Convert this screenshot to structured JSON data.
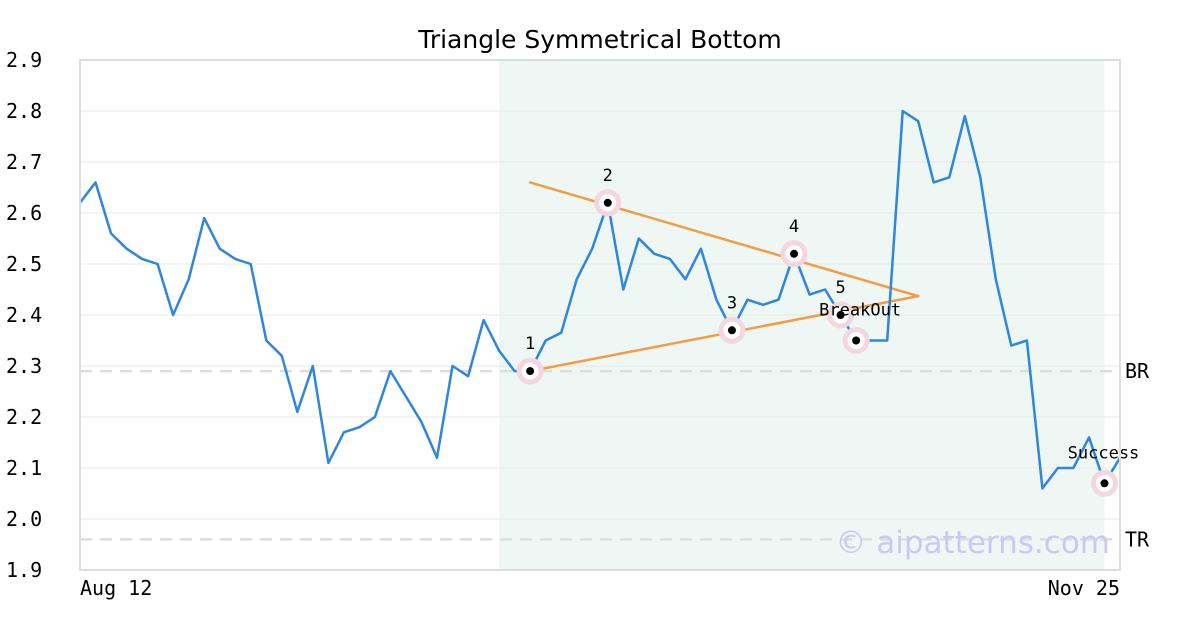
{
  "chart_data": {
    "type": "line",
    "title": "Triangle Symmetrical Bottom",
    "xlabel": "",
    "ylabel": "",
    "ylim": [
      1.9,
      2.9
    ],
    "y_ticks": [
      "2.9",
      "2.8",
      "2.7",
      "2.6",
      "2.5",
      "2.4",
      "2.3",
      "2.2",
      "2.1",
      "2.0",
      "1.9"
    ],
    "x_tick_labels": [
      "Aug 12",
      "Nov 25"
    ],
    "grid": "horizontal",
    "colors": {
      "price": "#2e86de",
      "trendline": "#f39c44",
      "highlight_band": "#eef7f3",
      "marker_ring": "#f2d7df",
      "ref_line": "#dddddd"
    },
    "price": [
      2.62,
      2.66,
      2.56,
      2.53,
      2.51,
      2.5,
      2.4,
      2.47,
      2.59,
      2.53,
      2.51,
      2.5,
      2.35,
      2.32,
      2.21,
      2.3,
      2.11,
      2.17,
      2.18,
      2.2,
      2.29,
      2.24,
      2.19,
      2.12,
      2.3,
      2.28,
      2.39,
      2.33,
      2.29,
      2.29,
      2.35,
      2.365,
      2.47,
      2.53,
      2.62,
      2.45,
      2.55,
      2.52,
      2.51,
      2.47,
      2.53,
      2.43,
      2.37,
      2.43,
      2.42,
      2.43,
      2.52,
      2.44,
      2.45,
      2.4,
      2.35,
      2.35,
      2.35,
      2.8,
      2.78,
      2.66,
      2.67,
      2.79,
      2.67,
      2.47,
      2.34,
      2.35,
      2.06,
      2.1,
      2.1,
      2.16,
      2.07,
      2.12
    ],
    "pattern_band": {
      "start_index": 27,
      "end_index": 66
    },
    "trendlines": [
      {
        "points": [
          [
            29,
            2.66
          ],
          [
            54,
            2.437
          ]
        ]
      },
      {
        "points": [
          [
            29,
            2.29
          ],
          [
            54,
            2.437
          ]
        ]
      }
    ],
    "points": [
      {
        "label": "1",
        "index": 29,
        "value": 2.29
      },
      {
        "label": "2",
        "index": 34,
        "value": 2.62
      },
      {
        "label": "3",
        "index": 42,
        "value": 2.37
      },
      {
        "label": "4",
        "index": 46,
        "value": 2.52
      },
      {
        "label": "5",
        "index": 49,
        "value": 2.4
      },
      {
        "label": "BreakOut",
        "index": 50,
        "value": 2.35
      },
      {
        "label": "Success",
        "index": 66,
        "value": 2.07
      }
    ],
    "reference_lines": [
      {
        "label": "BR",
        "value": 2.29
      },
      {
        "label": "TR",
        "value": 1.96
      }
    ]
  },
  "watermark": "© aipatterns.com"
}
